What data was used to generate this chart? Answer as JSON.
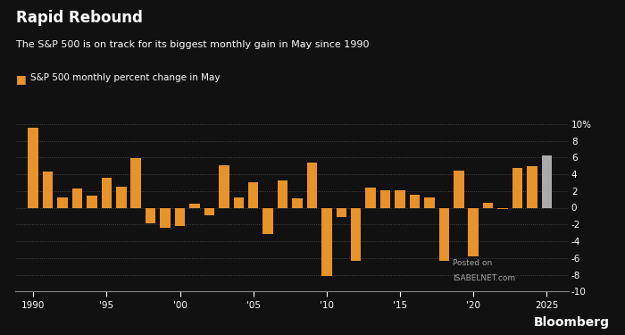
{
  "title": "Rapid Rebound",
  "subtitle": "The S&P 500 is on track for its biggest monthly gain in May since 1990",
  "legend_label": "S&P 500 monthly percent change in May",
  "years": [
    1990,
    1991,
    1992,
    1993,
    1994,
    1995,
    1996,
    1997,
    1998,
    1999,
    2000,
    2001,
    2002,
    2003,
    2004,
    2005,
    2006,
    2007,
    2008,
    2009,
    2010,
    2011,
    2012,
    2013,
    2014,
    2015,
    2016,
    2017,
    2018,
    2019,
    2020,
    2021,
    2022,
    2023,
    2024,
    2025
  ],
  "values": [
    9.5,
    4.3,
    1.2,
    2.3,
    1.4,
    3.6,
    2.5,
    5.9,
    -1.9,
    -2.4,
    -2.2,
    0.5,
    -0.9,
    5.1,
    1.2,
    3.0,
    -3.1,
    3.3,
    1.1,
    5.4,
    -8.2,
    -1.1,
    -6.3,
    2.4,
    2.1,
    2.1,
    1.5,
    1.2,
    -6.3,
    4.4,
    -5.8,
    0.6,
    -0.2,
    4.8,
    5.0,
    6.2
  ],
  "bar_color_orange": "#E8922A",
  "bar_color_gray": "#AAAAAA",
  "bg_color": "#111111",
  "text_color": "#FFFFFF",
  "grid_color": "#555555",
  "axis_color": "#888888",
  "ylim_min": -10,
  "ylim_max": 10,
  "yticks": [
    -10,
    -8,
    -6,
    -4,
    -2,
    0,
    2,
    4,
    6,
    8,
    10
  ],
  "ytick_labels": [
    "-10",
    "-8",
    "-6",
    "-4",
    "-2",
    "0",
    "2",
    "4",
    "6",
    "8",
    "10%"
  ],
  "xtick_years": [
    1990,
    1995,
    2000,
    2005,
    2010,
    2015,
    2020,
    2025
  ],
  "xtick_labels": [
    "1990",
    "'95",
    "'00",
    "'05",
    "'10",
    "'15",
    "'20",
    "2025"
  ],
  "bloomberg_text": "Bloomberg",
  "watermark_line1": "Posted on",
  "watermark_line2": "ISABELNET.com",
  "xlim_min": 1988.8,
  "xlim_max": 2026.5,
  "bar_width": 0.7
}
